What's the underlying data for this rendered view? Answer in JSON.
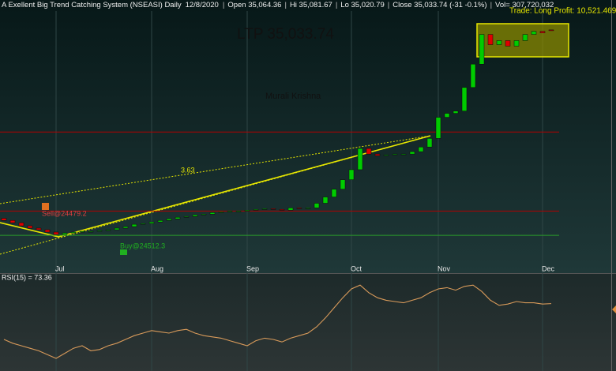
{
  "header": {
    "title": "A Exellent Big Trend Catching System (NSEASI) Daily",
    "date": "12/8/2020",
    "open": "Open 35,064.36",
    "high": "Hi 35,081.67",
    "low": "Lo 35,020.79",
    "close": "Close 35,033.74 (-31 -0.1%)",
    "volume": "Vol= 307,720,032"
  },
  "chart_data": [
    {
      "type": "candlestick",
      "categories": [
        null,
        null,
        null,
        null,
        null,
        null,
        "Jul",
        null,
        null,
        null,
        null,
        null,
        null,
        null,
        null,
        null,
        null,
        "Aug",
        null,
        null,
        null,
        null,
        null,
        null,
        null,
        null,
        null,
        null,
        "Sep",
        null,
        null,
        null,
        null,
        null,
        null,
        null,
        null,
        null,
        null,
        null,
        "Oct",
        null,
        null,
        null,
        null,
        null,
        null,
        null,
        null,
        null,
        "Nov",
        null,
        null,
        null,
        null,
        null,
        null,
        null,
        null,
        null,
        null,
        null,
        "Dec",
        null
      ],
      "open": [
        25300,
        25190,
        25070,
        24910,
        24790,
        24705,
        24585,
        24460,
        24540,
        24585,
        24625,
        24625,
        24665,
        24705,
        24790,
        24870,
        24990,
        25030,
        25110,
        25190,
        25270,
        25355,
        25395,
        25475,
        25515,
        25595,
        25635,
        25675,
        25675,
        25720,
        25760,
        25800,
        25760,
        25720,
        25840,
        25800,
        25840,
        26080,
        26405,
        26810,
        27300,
        27820,
        28920,
        28630,
        28550,
        28590,
        28630,
        28630,
        28755,
        28995,
        29440,
        30535,
        30740,
        30860,
        32080,
        33290,
        34830,
        34300,
        34510,
        34225,
        34510,
        34830,
        34990,
        35064.36
      ],
      "close": [
        25190,
        25070,
        24910,
        24790,
        24705,
        24585,
        24460,
        24540,
        24585,
        24625,
        24625,
        24665,
        24705,
        24790,
        24870,
        24990,
        25030,
        25110,
        25190,
        25270,
        25355,
        25395,
        25475,
        25515,
        25595,
        25635,
        25675,
        25675,
        25720,
        25760,
        25800,
        25760,
        25720,
        25840,
        25800,
        25840,
        26080,
        26405,
        26810,
        27300,
        27820,
        28920,
        28630,
        28550,
        28590,
        28630,
        28630,
        28755,
        28995,
        29440,
        30535,
        30740,
        30860,
        32080,
        33290,
        34830,
        34300,
        34510,
        34225,
        34510,
        34830,
        34990,
        34910,
        35033.74
      ],
      "up_color": "#00cc00",
      "down_color": "#e00000",
      "ylim": [
        22500,
        36000
      ],
      "levels": [
        {
          "value": 29770,
          "color": "#b00000"
        },
        {
          "value": 25675,
          "color": "#b00000"
        },
        {
          "value": 24420,
          "color": "#2a9a2a"
        }
      ],
      "annotations": {
        "ltp": "LTP 35,033.74",
        "trade": "Trade: Long Profit: 10,521.469",
        "author": "Murali Krishna",
        "slope": "3.63",
        "sell": "Sell@24479.2",
        "buy": "Buy@24512.3"
      }
    },
    {
      "type": "line",
      "title": "RSI(15) = 73.36",
      "color": "#d89a5a",
      "ylim": [
        20,
        95
      ],
      "values": [
        45,
        42,
        40,
        38,
        36,
        33,
        30,
        34,
        38,
        40,
        36,
        37,
        40,
        42,
        45,
        48,
        50,
        52,
        51,
        50,
        52,
        53,
        50,
        48,
        47,
        46,
        44,
        42,
        40,
        44,
        46,
        45,
        43,
        46,
        48,
        50,
        55,
        62,
        70,
        78,
        85,
        88,
        82,
        78,
        76,
        75,
        74,
        76,
        78,
        82,
        85,
        86,
        84,
        87,
        88,
        83,
        76,
        72,
        73,
        75,
        74,
        74,
        73,
        73.36
      ]
    }
  ]
}
